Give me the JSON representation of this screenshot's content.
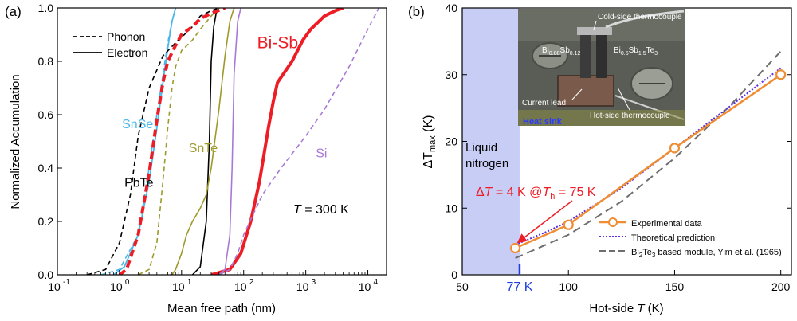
{
  "chart_data": [
    {
      "panel": "(a)",
      "type": "line",
      "xlabel": "Mean free path (nm)",
      "ylabel": "Normalized Accumulation",
      "xscale": "log",
      "xlim": [
        0.1,
        20000
      ],
      "ylim": [
        0,
        1.0
      ],
      "xticks": [
        0.1,
        1,
        10,
        100,
        1000,
        10000
      ],
      "xtick_labels": [
        "10",
        "10",
        "10",
        "10",
        "10",
        "10"
      ],
      "xtick_exponents": [
        "-1",
        "0",
        "1",
        "2",
        "3",
        "4"
      ],
      "yticks": [
        0,
        0.2,
        0.4,
        0.6,
        0.8,
        1.0
      ],
      "ytick_labels": [
        "0.0",
        "0.2",
        "0.4",
        "0.6",
        "0.8",
        "1.0"
      ],
      "legend": {
        "placement": "top-left",
        "entries": [
          {
            "label": "Phonon",
            "style": "dashed"
          },
          {
            "label": "Electron",
            "style": "solid"
          }
        ]
      },
      "annotation_T": {
        "italic": "T",
        "rest": " = 300 K"
      },
      "labels": [
        {
          "text": "SnSe",
          "color": "#4db8e8",
          "x": 1.1,
          "y": 0.55
        },
        {
          "text": "PbTe",
          "color": "#000000",
          "x": 1.2,
          "y": 0.33
        },
        {
          "text": "SnTe",
          "color": "#9e9a2a",
          "x": 13,
          "y": 0.46
        },
        {
          "text": "Bi-Sb",
          "color": "#ee1c24",
          "x": 165,
          "y": 0.85
        },
        {
          "text": "Si",
          "color": "#a87ad6",
          "x": 1450,
          "y": 0.44
        }
      ],
      "series": [
        {
          "label_ref": "SnSe",
          "style": "dashed",
          "color": "#4db8e8",
          "width": 1.6,
          "points": [
            [
              0.5,
              0
            ],
            [
              1,
              0.02
            ],
            [
              2,
              0.15
            ],
            [
              3,
              0.4
            ],
            [
              4,
              0.6
            ],
            [
              5,
              0.75
            ],
            [
              6,
              0.87
            ],
            [
              7,
              0.95
            ],
            [
              8,
              1.0
            ]
          ]
        },
        {
          "label_ref": "SnSe",
          "style": "solid",
          "color": "#4db8e8",
          "width": 1.8,
          "points": [
            [
              0.8,
              0
            ],
            [
              1.2,
              0.03
            ],
            [
              2,
              0.15
            ],
            [
              3,
              0.35
            ],
            [
              4,
              0.55
            ],
            [
              5,
              0.72
            ],
            [
              6,
              0.85
            ],
            [
              7,
              0.95
            ],
            [
              8,
              1.0
            ]
          ]
        },
        {
          "label_ref": "PbTe",
          "style": "dashed",
          "color": "#000000",
          "width": 1.6,
          "points": [
            [
              0.3,
              0
            ],
            [
              0.6,
              0.02
            ],
            [
              1,
              0.12
            ],
            [
              1.5,
              0.3
            ],
            [
              2,
              0.52
            ],
            [
              3,
              0.7
            ],
            [
              5,
              0.82
            ],
            [
              8,
              0.87
            ],
            [
              10,
              0.89
            ],
            [
              15,
              0.93
            ],
            [
              20,
              0.97
            ],
            [
              30,
              0.99
            ],
            [
              40,
              1.0
            ]
          ]
        },
        {
          "label_ref": "PbTe",
          "style": "solid",
          "color": "#000000",
          "width": 1.6,
          "points": [
            [
              15,
              0
            ],
            [
              20,
              0.03
            ],
            [
              25,
              0.2
            ],
            [
              28,
              0.5
            ],
            [
              30,
              0.8
            ],
            [
              33,
              0.93
            ],
            [
              36,
              0.98
            ],
            [
              40,
              1.0
            ]
          ]
        },
        {
          "label_ref": "SnTe",
          "style": "dashed",
          "color": "#9e9a2a",
          "width": 1.6,
          "points": [
            [
              2,
              0
            ],
            [
              3,
              0.02
            ],
            [
              4,
              0.12
            ],
            [
              5,
              0.35
            ],
            [
              6,
              0.55
            ],
            [
              7,
              0.7
            ],
            [
              8,
              0.78
            ],
            [
              10,
              0.84
            ],
            [
              15,
              0.88
            ],
            [
              20,
              0.92
            ],
            [
              30,
              0.97
            ],
            [
              40,
              1.0
            ]
          ]
        },
        {
          "label_ref": "SnTe",
          "style": "solid",
          "color": "#9e9a2a",
          "width": 1.6,
          "points": [
            [
              7,
              0
            ],
            [
              8,
              0.02
            ],
            [
              10,
              0.08
            ],
            [
              12,
              0.15
            ],
            [
              15,
              0.2
            ],
            [
              20,
              0.25
            ],
            [
              25,
              0.3
            ],
            [
              30,
              0.4
            ],
            [
              40,
              0.62
            ],
            [
              50,
              0.82
            ],
            [
              60,
              0.95
            ],
            [
              70,
              1.0
            ]
          ]
        },
        {
          "label_ref": "Bi-Sb",
          "style": "dashed",
          "color": "#ee1c24",
          "width": 4,
          "points": [
            [
              1,
              0
            ],
            [
              1.3,
              0.02
            ],
            [
              2,
              0.15
            ],
            [
              3,
              0.38
            ],
            [
              4,
              0.58
            ],
            [
              5,
              0.72
            ],
            [
              6,
              0.8
            ],
            [
              8,
              0.86
            ],
            [
              10,
              0.9
            ],
            [
              15,
              0.93
            ],
            [
              20,
              0.96
            ],
            [
              30,
              0.98
            ],
            [
              50,
              1.0
            ]
          ]
        },
        {
          "label_ref": "Bi-Sb",
          "style": "solid",
          "color": "#ee1c24",
          "width": 4,
          "points": [
            [
              30,
              0
            ],
            [
              60,
              0.02
            ],
            [
              90,
              0.08
            ],
            [
              130,
              0.2
            ],
            [
              180,
              0.35
            ],
            [
              250,
              0.55
            ],
            [
              300,
              0.65
            ],
            [
              350,
              0.72
            ],
            [
              400,
              0.74
            ],
            [
              600,
              0.8
            ],
            [
              900,
              0.88
            ],
            [
              1200,
              0.92
            ],
            [
              2000,
              0.97
            ],
            [
              3000,
              0.99
            ],
            [
              4000,
              1.0
            ]
          ]
        },
        {
          "label_ref": "Si",
          "style": "solid",
          "color": "#a87ad6",
          "width": 1.6,
          "points": [
            [
              40,
              0
            ],
            [
              50,
              0.02
            ],
            [
              60,
              0.15
            ],
            [
              65,
              0.4
            ],
            [
              70,
              0.75
            ],
            [
              80,
              0.95
            ],
            [
              90,
              1.0
            ]
          ]
        },
        {
          "label_ref": "Si",
          "style": "dashed",
          "color": "#a87ad6",
          "width": 1.6,
          "points": [
            [
              40,
              0
            ],
            [
              60,
              0.02
            ],
            [
              80,
              0.08
            ],
            [
              100,
              0.15
            ],
            [
              200,
              0.3
            ],
            [
              400,
              0.4
            ],
            [
              1000,
              0.52
            ],
            [
              2000,
              0.62
            ],
            [
              5000,
              0.78
            ],
            [
              10000,
              0.92
            ],
            [
              15000,
              1.0
            ]
          ]
        }
      ]
    },
    {
      "panel": "(b)",
      "type": "line",
      "xlabel_main": "Hot-side ",
      "xlabel_italic": "T",
      "xlabel_unit": " (K)",
      "ylabel_main": "ΔT",
      "ylabel_sub": "max",
      "ylabel_unit": " (K)",
      "xlim": [
        50,
        205
      ],
      "ylim": [
        0,
        40
      ],
      "xticks": [
        50,
        100,
        150,
        200
      ],
      "xtick_labels": [
        "50",
        "100",
        "150",
        "200"
      ],
      "yticks": [
        0,
        10,
        20,
        30,
        40
      ],
      "ytick_labels": [
        "0",
        "10",
        "20",
        "30",
        "40"
      ],
      "shaded_region": {
        "x_from": 50,
        "x_to": 77,
        "color": "#c8cdf5",
        "label_line1": "Liquid",
        "label_line2": "nitrogen"
      },
      "marker_77K": {
        "x": 77,
        "label": "77 K",
        "color": "#1f3fe0"
      },
      "annotation_red": {
        "delta": "Δ",
        "t1": "T",
        "mid": " = 4 K @",
        "t2": "T",
        "sub": "h",
        "end": " = 75 K",
        "color": "#ee1c24",
        "arrow_to": [
          75,
          4
        ]
      },
      "inset_photo_labels": [
        "Cold-side thermocouple",
        "Bi",
        "0.88",
        "Sb",
        "0.12",
        "Bi",
        "0.5",
        "Sb",
        "1.5",
        "Te",
        "3",
        "Current lead",
        "Hot-side thermocouple",
        "Heat sink"
      ],
      "legend": {
        "placement": "bottom-right",
        "entries": [
          {
            "label": "Experimental data",
            "style": "solid-marker",
            "color": "#f08c32"
          },
          {
            "label": "Theoretical prediction",
            "style": "dotted",
            "color": "#5a2de0"
          },
          {
            "label_main": "Bi",
            "label_sub": "2",
            "label_main2": "Te",
            "label_sub2": "3",
            "label_rest": " based module, Yim et al. (1965)",
            "style": "dashed",
            "color": "#6e6e6e"
          }
        ]
      },
      "series": [
        {
          "name": "Experimental data",
          "color": "#f08c32",
          "style": "solid",
          "width": 2.5,
          "marker": "circle",
          "x": [
            75,
            100,
            150,
            200
          ],
          "y": [
            4,
            7.5,
            19,
            30
          ]
        },
        {
          "name": "Theoretical prediction",
          "color": "#5a2de0",
          "style": "dotted",
          "width": 2,
          "x": [
            75,
            90,
            100,
            125,
            150,
            175,
            200
          ],
          "y": [
            4.5,
            6.5,
            8,
            13,
            19,
            25,
            31
          ]
        },
        {
          "name": "Bi2Te3 based module, Yim et al. (1965)",
          "color": "#6e6e6e",
          "style": "dashed",
          "width": 2,
          "x": [
            75,
            100,
            125,
            150,
            175,
            200
          ],
          "y": [
            2.5,
            6,
            11,
            17.5,
            25,
            33.5
          ]
        }
      ]
    }
  ]
}
